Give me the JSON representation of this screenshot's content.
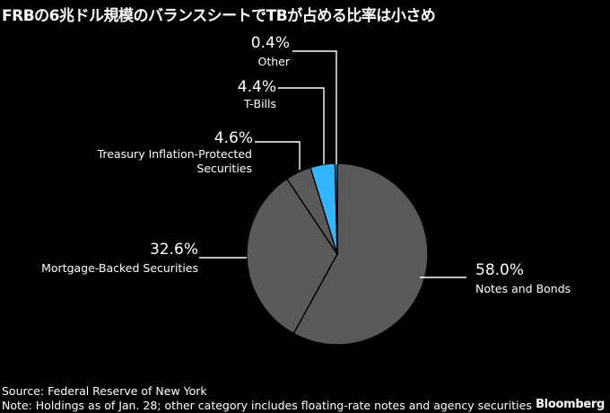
{
  "title": "FRBの6兆ドル規模のバランスシートでTBが占める比率は小さめ",
  "chart_data": {
    "type": "pie",
    "slices": [
      {
        "label": "Notes and Bonds",
        "value": 58.0,
        "value_label": "58.0%",
        "color": "#595959"
      },
      {
        "label": "Mortgage-Backed Securities",
        "value": 32.6,
        "value_label": "32.6%",
        "color": "#595959"
      },
      {
        "label": "Treasury Inflation-Protected Securities",
        "value": 4.6,
        "value_label": "4.6%",
        "color": "#595959"
      },
      {
        "label": "T-Bills",
        "value": 4.4,
        "value_label": "4.4%",
        "color": "#33b5ff"
      },
      {
        "label": "Other",
        "value": 0.4,
        "value_label": "0.4%",
        "color": "#33b5ff"
      }
    ]
  },
  "footer": {
    "source": "Source: Federal Reserve of New York",
    "note": "Note: Holdings as of Jan. 28; other category includes floating-rate notes and agency securities"
  },
  "logo": "Bloomberg"
}
